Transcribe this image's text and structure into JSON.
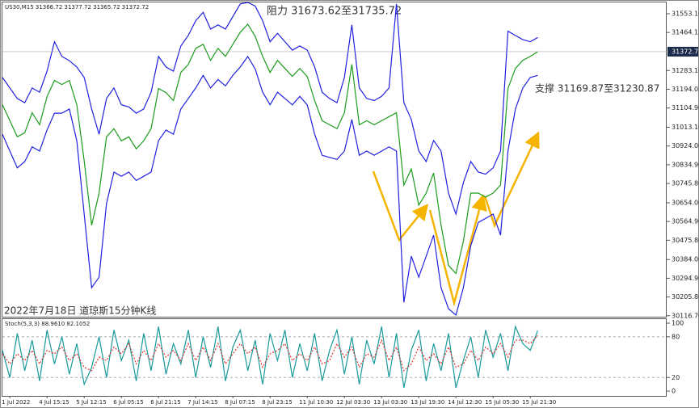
{
  "chart_data": [
    {
      "type": "line",
      "header": "US30,M15  31366.72 31377.72 31365.72 31372.72",
      "annotations": [
        "阻力 31673.62至31735.72",
        "支撑 31169.87至31230.87",
        "2022年7月18日 道琼斯15分钟K线"
      ],
      "categories": [
        null,
        "1 Jul 2022",
        null,
        null,
        null,
        null,
        "4 Jul 15:15",
        null,
        null,
        null,
        null,
        "5 Jul 12:15",
        null,
        null,
        null,
        null,
        "6 Jul 05:15",
        null,
        null,
        null,
        null,
        "6 Jul 21:15",
        null,
        null,
        null,
        null,
        "7 Jul 14:15",
        null,
        null,
        null,
        null,
        "8 Jul 07:15",
        null,
        null,
        null,
        null,
        "8 Jul 23:15",
        null,
        null,
        null,
        null,
        "11 Jul 10:30",
        null,
        null,
        null,
        null,
        "12 Jul 03:30",
        null,
        null,
        null,
        null,
        "13 Jul 03:30",
        null,
        null,
        null,
        null,
        "13 Jul 19:30",
        null,
        null,
        null,
        null,
        "14 Jul 12:30",
        null,
        null,
        null,
        null,
        "15 Jul 05:30",
        null,
        null,
        null,
        null,
        "15 Jul 21:30",
        null
      ],
      "series": [
        {
          "name": "close",
          "color": "#1a9c1a",
          "values": [
            31120.9,
            31044.4,
            30967.9,
            30987.0,
            31082.6,
            31025.2,
            31159.1,
            31235.6,
            31216.5,
            31235.6,
            31120.9,
            30853.1,
            30547.1,
            30700.1,
            30967.9,
            31006.1,
            30948.7,
            30967.9,
            30910.5,
            30948.7,
            31006.1,
            31197.4,
            31178.2,
            31140.0,
            31273.9,
            31312.1,
            31388.6,
            31407.7,
            31331.2,
            31388.6,
            31350.4,
            31407.7,
            31465.1,
            31503.4,
            31446.0,
            31350.4,
            31273.9,
            31331.2,
            31293.0,
            31254.7,
            31293.0,
            31254.7,
            31140.0,
            31044.4,
            31025.2,
            31006.1,
            31082.6,
            31312.1,
            31025.2,
            31044.4,
            31025.2,
            31044.4,
            31063.5,
            31082.6,
            30738.4,
            30814.9,
            30642.7,
            30700.1,
            30795.7,
            30547.1,
            30355.9,
            30317.6,
            30470.6,
            30700.1,
            30700.1,
            30681.0,
            30700.1,
            30738.4,
            31197.4,
            31293.0,
            31331.2,
            31350.4,
            31372.72
          ]
        },
        {
          "name": "upper",
          "color": "#2020e0",
          "values": [
            31250,
            31200,
            31150,
            31130,
            31200,
            31180,
            31280,
            31420,
            31350,
            31330,
            31300,
            31250,
            31100,
            30980,
            31150,
            31200,
            31120,
            31110,
            31080,
            31100,
            31180,
            31350,
            31300,
            31280,
            31400,
            31450,
            31520,
            31560,
            31480,
            31500,
            31480,
            31540,
            31600,
            31607,
            31590,
            31520,
            31420,
            31460,
            31420,
            31380,
            31400,
            31380,
            31300,
            31180,
            31150,
            31130,
            31250,
            31500,
            31200,
            31150,
            31140,
            31160,
            31200,
            31600,
            31130,
            31050,
            30900,
            30850,
            30950,
            30900,
            30700,
            30600,
            30750,
            30850,
            30800,
            30790,
            30820,
            30900,
            31470,
            31450,
            31430,
            31420,
            31440
          ]
        },
        {
          "name": "lower",
          "color": "#2020e0",
          "values": [
            30980,
            30900,
            30820,
            30850,
            30920,
            30900,
            31000,
            31080,
            31080,
            31100,
            30950,
            30600,
            30250,
            30300,
            30650,
            30800,
            30780,
            30800,
            30760,
            30780,
            30800,
            30950,
            31000,
            30980,
            31100,
            31150,
            31200,
            31260,
            31200,
            31240,
            31210,
            31260,
            31300,
            31350,
            31290,
            31180,
            31120,
            31180,
            31150,
            31120,
            31160,
            31120,
            30980,
            30880,
            30870,
            30860,
            30900,
            31050,
            30880,
            30900,
            30880,
            30900,
            30920,
            30900,
            30180,
            30400,
            30300,
            30400,
            30500,
            30250,
            30150,
            30120,
            30250,
            30450,
            30560,
            30580,
            30600,
            30500,
            30900,
            31100,
            31200,
            31250,
            31260
          ]
        }
      ],
      "ylim": [
        30112,
        31607
      ],
      "yticks": [
        {
          "value": 31553.1,
          "label": "31553.10"
        },
        {
          "value": 31464.15,
          "label": "31464.15"
        },
        {
          "value": 31283.16,
          "label": "31283.16"
        },
        {
          "value": 31194.05,
          "label": "31194.05"
        },
        {
          "value": 31104.9,
          "label": "31104.90"
        },
        {
          "value": 31013.1,
          "label": "31013.10"
        },
        {
          "value": 30924,
          "label": "30924.00"
        },
        {
          "value": 30834.9,
          "label": "30834.90"
        },
        {
          "value": 30745.8,
          "label": "30745.80"
        },
        {
          "value": 30654,
          "label": "30654.00"
        },
        {
          "value": 30564.9,
          "label": "30564.90"
        },
        {
          "value": 30475.8,
          "label": "30475.80"
        },
        {
          "value": 30384,
          "label": "30384.00"
        },
        {
          "value": 30294.9,
          "label": "30294.90"
        },
        {
          "value": 30205.8,
          "label": "30205.80"
        },
        {
          "value": 30116.7,
          "label": "30116.70"
        }
      ],
      "price_label": {
        "value": 31372.72,
        "label": "31372.72"
      }
    },
    {
      "type": "line",
      "title": "Stoch(5,3,3) 88.9610 82.1052",
      "series": [
        {
          "name": "main",
          "color": "#1a9a9a",
          "values": [
            60,
            20,
            85,
            30,
            75,
            15,
            90,
            40,
            80,
            25,
            70,
            10,
            35,
            80,
            20,
            90,
            45,
            75,
            15,
            85,
            30,
            95,
            25,
            70,
            40,
            90,
            20,
            80,
            35,
            95,
            15,
            65,
            90,
            30,
            75,
            10,
            85,
            45,
            90,
            20,
            70,
            30,
            85,
            15,
            60,
            90,
            25,
            80,
            10,
            75,
            40,
            95,
            20,
            85,
            5,
            60,
            90,
            15,
            70,
            30,
            85,
            5,
            45,
            80,
            20,
            90,
            50,
            85,
            30,
            95,
            70,
            60,
            88.961
          ]
        },
        {
          "name": "signal",
          "color": "#e03030",
          "dashed": true,
          "values": [
            55,
            40,
            55,
            45,
            60,
            40,
            60,
            55,
            65,
            45,
            55,
            35,
            30,
            50,
            45,
            65,
            55,
            70,
            40,
            60,
            45,
            70,
            50,
            60,
            45,
            70,
            45,
            65,
            45,
            70,
            40,
            55,
            70,
            55,
            65,
            35,
            55,
            60,
            70,
            45,
            55,
            45,
            65,
            40,
            45,
            70,
            50,
            65,
            35,
            55,
            50,
            75,
            45,
            65,
            30,
            40,
            65,
            45,
            55,
            40,
            65,
            35,
            40,
            60,
            45,
            65,
            55,
            70,
            50,
            75,
            75,
            70,
            82.1052
          ]
        }
      ],
      "ylim": [
        -7,
        106
      ],
      "yticks": [
        100,
        80,
        20,
        0
      ],
      "levels": [
        80,
        20
      ]
    }
  ]
}
